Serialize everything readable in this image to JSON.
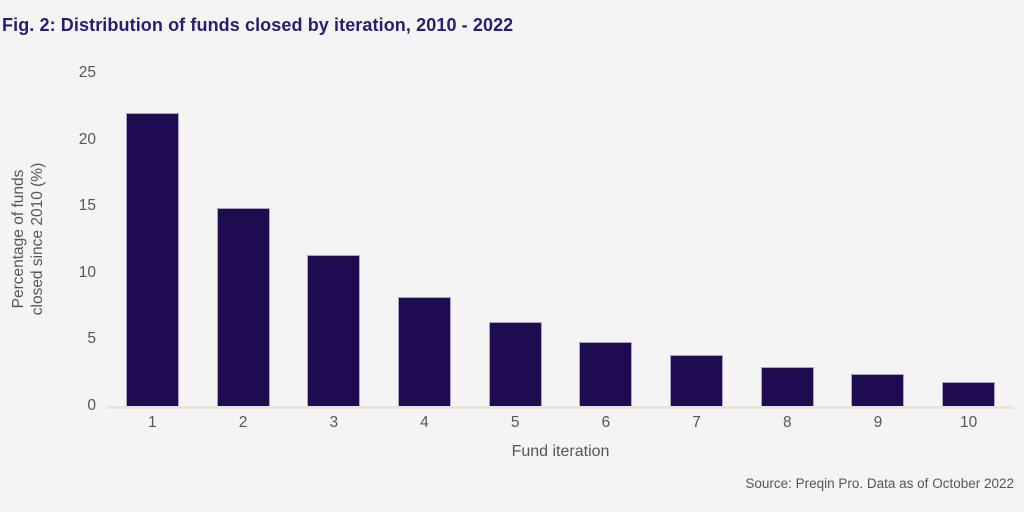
{
  "title": "Fig. 2: Distribution of funds closed by iteration, 2010 - 2022",
  "source": "Source: Preqin Pro. Data as of October 2022",
  "chart_data": {
    "type": "bar",
    "title": "Fig. 2: Distribution of funds closed by iteration, 2010 - 2022",
    "categories": [
      "1",
      "2",
      "3",
      "4",
      "5",
      "6",
      "7",
      "8",
      "9",
      "10"
    ],
    "values": [
      22.0,
      14.9,
      11.3,
      8.2,
      6.3,
      4.8,
      3.8,
      2.9,
      2.4,
      1.8
    ],
    "xlabel": "Fund iteration",
    "ylabel": "Percentage of funds closed since 2010 (%)",
    "ylabel_lines": [
      "Percentage of funds",
      "closed since 2010 (%)"
    ],
    "ylim": [
      0,
      25
    ],
    "y_ticks": [
      0,
      5,
      10,
      15,
      20,
      25
    ],
    "grid": false,
    "legend_position": "none"
  },
  "colors": {
    "background": "#f4f4f5",
    "bar_fill": "#1e0b50",
    "bar_border": "#aba3cd",
    "title_text": "#2b1c6e",
    "axis_text": "#54565a",
    "baseline": "#e9e4dd"
  }
}
